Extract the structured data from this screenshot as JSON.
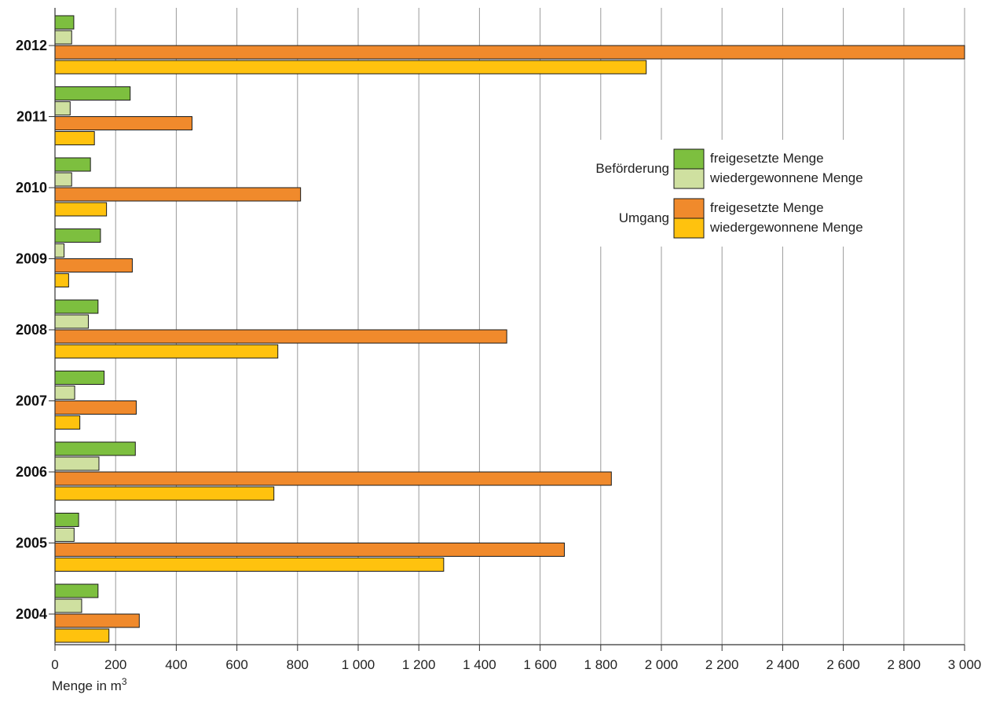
{
  "chart_data": {
    "type": "bar",
    "orientation": "horizontal",
    "categories": [
      "2012",
      "2011",
      "2010",
      "2009",
      "2008",
      "2007",
      "2006",
      "2005",
      "2004"
    ],
    "series": [
      {
        "group": "Beförderung",
        "name": "freigesetzte Menge",
        "color": "#7dbf3f",
        "values": [
          62,
          248,
          117,
          150,
          142,
          162,
          265,
          78,
          142
        ]
      },
      {
        "group": "Beförderung",
        "name": "wiedergewonnene Menge",
        "color": "#cfe0a0",
        "values": [
          55,
          50,
          55,
          30,
          110,
          65,
          145,
          63,
          88
        ]
      },
      {
        "group": "Umgang",
        "name": "freigesetzte Menge",
        "color": "#f08a2c",
        "values": [
          3000,
          452,
          810,
          255,
          1490,
          268,
          1835,
          1680,
          278
        ]
      },
      {
        "group": "Umgang",
        "name": "wiedergewonnene Menge",
        "color": "#ffc20e",
        "values": [
          1950,
          130,
          170,
          45,
          735,
          82,
          722,
          1282,
          178
        ]
      }
    ],
    "legend_groups": [
      {
        "label": "Beförderung",
        "series_index": [
          0,
          1
        ]
      },
      {
        "label": "Umgang",
        "series_index": [
          2,
          3
        ]
      }
    ],
    "legend_position": "top-right",
    "xlim": [
      0,
      3000
    ],
    "x_ticks": [
      0,
      200,
      400,
      600,
      800,
      1000,
      1200,
      1400,
      1600,
      1800,
      2000,
      2200,
      2400,
      2600,
      2800,
      3000
    ],
    "x_tick_labels": [
      "0",
      "200",
      "400",
      "600",
      "800",
      "1 000",
      "1 200",
      "1 400",
      "1 600",
      "1 800",
      "2 000",
      "2 200",
      "2 400",
      "2 600",
      "2 800",
      "3 000"
    ],
    "xlabel": "Menge in m",
    "xlabel_superscript": "3",
    "grid": "vertical"
  }
}
